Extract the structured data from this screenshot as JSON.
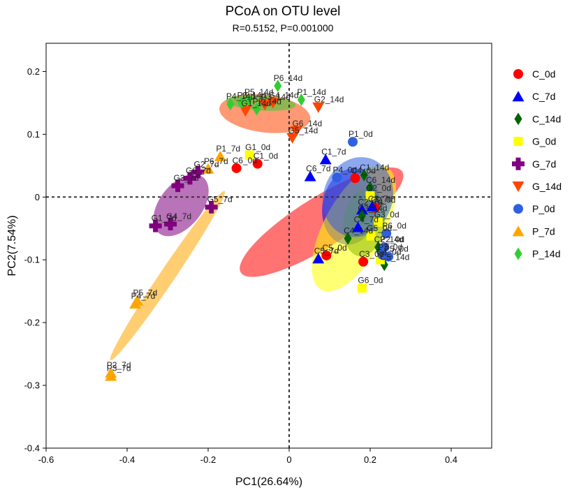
{
  "chart_data": {
    "type": "scatter",
    "title": "PCoA on OTU level",
    "subtitle": "R=0.5152, P=0.001000",
    "xlabel": "PC1(26.64%)",
    "ylabel": "PC2(7.54%)",
    "xlim": [
      -0.6,
      0.5
    ],
    "ylim": [
      -0.4,
      0.245
    ],
    "xticks": [
      "-0.6",
      "-0.4",
      "-0.2",
      "0",
      "0.2",
      "0.4"
    ],
    "yticks": [
      "0.2",
      "0.1",
      "0",
      "-0.1",
      "-0.2",
      "-0.3",
      "-0.4"
    ],
    "legend_position": "right",
    "groups": [
      {
        "name": "C_0d",
        "color": "#ff0000",
        "marker": "circle",
        "ellipse": {
          "cx": 0.08,
          "cy": -0.04,
          "rx": 0.235,
          "ry": 0.04,
          "angle": 32
        },
        "points": [
          {
            "label": "C1_0d",
            "x": -0.078,
            "y": 0.053
          },
          {
            "label": "C6_0d",
            "x": -0.13,
            "y": 0.046
          },
          {
            "label": "C4_0d",
            "x": 0.163,
            "y": 0.03
          },
          {
            "label": "C5_0d",
            "x": 0.092,
            "y": -0.093
          },
          {
            "label": "C3_0d",
            "x": 0.183,
            "y": -0.103
          },
          {
            "label": "C2_0d",
            "x": 0.212,
            "y": -0.017
          }
        ]
      },
      {
        "name": "C_7d",
        "color": "#0000ff",
        "marker": "triangle",
        "ellipse": {
          "cx": 0.152,
          "cy": -0.015,
          "rx": 0.095,
          "ry": 0.045,
          "angle": 80
        },
        "points": [
          {
            "label": "C1_7d",
            "x": 0.09,
            "y": 0.06
          },
          {
            "label": "C6_7d",
            "x": 0.052,
            "y": 0.033
          },
          {
            "label": "C2_7d",
            "x": 0.18,
            "y": -0.02
          },
          {
            "label": "C5_7d",
            "x": 0.072,
            "y": -0.098
          },
          {
            "label": "C4_7d",
            "x": 0.17,
            "y": -0.048
          },
          {
            "label": "C3_7d",
            "x": 0.205,
            "y": -0.015
          }
        ]
      },
      {
        "name": "C_14d",
        "color": "#006400",
        "marker": "diamond",
        "ellipse": {
          "cx": 0.185,
          "cy": -0.04,
          "rx": 0.085,
          "ry": 0.033,
          "angle": 82
        },
        "points": [
          {
            "label": "C1_14d",
            "x": 0.185,
            "y": 0.035
          },
          {
            "label": "C4_14d",
            "x": 0.145,
            "y": -0.066
          },
          {
            "label": "C6_14d",
            "x": 0.2,
            "y": 0.015
          },
          {
            "label": "C3_14d",
            "x": 0.18,
            "y": -0.03
          },
          {
            "label": "C2_14d",
            "x": 0.22,
            "y": -0.08
          },
          {
            "label": "C5_14d",
            "x": 0.235,
            "y": -0.108
          }
        ]
      },
      {
        "name": "G_0d",
        "color": "#ffff00",
        "marker": "square",
        "ellipse": {
          "cx": 0.16,
          "cy": -0.05,
          "rx": 0.172,
          "ry": 0.048,
          "angle": 62
        },
        "points": [
          {
            "label": "G1_0d",
            "x": -0.098,
            "y": 0.067
          },
          {
            "label": "G2_0d",
            "x": 0.2,
            "y": 0.002
          },
          {
            "label": "G3_0d",
            "x": 0.22,
            "y": -0.04
          },
          {
            "label": "G4_0d",
            "x": 0.225,
            "y": -0.1
          },
          {
            "label": "G5_0d",
            "x": 0.202,
            "y": -0.062
          },
          {
            "label": "G6_0d",
            "x": 0.18,
            "y": -0.145
          }
        ]
      },
      {
        "name": "G_7d",
        "color": "#800080",
        "marker": "cross",
        "ellipse": {
          "cx": -0.267,
          "cy": -0.013,
          "rx": 0.088,
          "ry": 0.034,
          "angle": 52
        },
        "points": [
          {
            "label": "G1_7d",
            "x": -0.33,
            "y": -0.046
          },
          {
            "label": "G2_7d",
            "x": -0.225,
            "y": 0.04
          },
          {
            "label": "G3_7d",
            "x": -0.275,
            "y": 0.018
          },
          {
            "label": "G4_7d",
            "x": -0.293,
            "y": -0.043
          },
          {
            "label": "G5_7d",
            "x": -0.192,
            "y": -0.016
          },
          {
            "label": "G6_7d",
            "x": -0.245,
            "y": 0.03
          }
        ]
      },
      {
        "name": "G_14d",
        "color": "#ff4500",
        "marker": "triangle-down",
        "ellipse": {
          "cx": -0.06,
          "cy": 0.133,
          "rx": 0.113,
          "ry": 0.03,
          "angle": -7
        },
        "points": [
          {
            "label": "G1_14d",
            "x": -0.108,
            "y": 0.137
          },
          {
            "label": "G2_14d",
            "x": 0.072,
            "y": 0.143
          },
          {
            "label": "G3_14d",
            "x": -0.06,
            "y": 0.147
          },
          {
            "label": "G4_14d",
            "x": -0.04,
            "y": 0.15
          },
          {
            "label": "G5_14d",
            "x": 0.008,
            "y": 0.094
          },
          {
            "label": "G6_14d",
            "x": 0.018,
            "y": 0.105
          }
        ]
      },
      {
        "name": "P_0d",
        "color": "#3060e0",
        "marker": "circle",
        "ellipse": {
          "cx": 0.17,
          "cy": 0.0,
          "rx": 0.1,
          "ry": 0.055,
          "angle": 72
        },
        "points": [
          {
            "label": "P1_0d",
            "x": 0.157,
            "y": 0.088
          },
          {
            "label": "P2_0d",
            "x": 0.235,
            "y": -0.08
          },
          {
            "label": "P3_0d",
            "x": 0.23,
            "y": -0.092
          },
          {
            "label": "P4_0d",
            "x": 0.118,
            "y": 0.031
          },
          {
            "label": "P5_0d",
            "x": 0.245,
            "y": -0.095
          },
          {
            "label": "P6_0d",
            "x": 0.24,
            "y": -0.058
          }
        ]
      },
      {
        "name": "P_7d",
        "color": "#ffa500",
        "marker": "triangle",
        "ellipse": {
          "cx": -0.3,
          "cy": -0.125,
          "rx": 0.252,
          "ry": 0.012,
          "angle": 56
        },
        "points": [
          {
            "label": "P1_7d",
            "x": -0.17,
            "y": 0.065
          },
          {
            "label": "P2_7d",
            "x": -0.44,
            "y": -0.28
          },
          {
            "label": "P3_7d",
            "x": -0.44,
            "y": -0.285
          },
          {
            "label": "P4_7d",
            "x": -0.38,
            "y": -0.17
          },
          {
            "label": "P5_7d",
            "x": -0.375,
            "y": -0.165
          },
          {
            "label": "P6_7d",
            "x": -0.2,
            "y": 0.045
          }
        ]
      },
      {
        "name": "P_14d",
        "color": "#32cd32",
        "marker": "diamond",
        "ellipse": {
          "cx": -0.07,
          "cy": 0.15,
          "rx": 0.086,
          "ry": 0.012,
          "angle": -4
        },
        "points": [
          {
            "label": "P1_14d",
            "x": 0.03,
            "y": 0.155
          },
          {
            "label": "P2_14d",
            "x": -0.08,
            "y": 0.14
          },
          {
            "label": "P3_14d",
            "x": -0.118,
            "y": 0.15
          },
          {
            "label": "P4_14d",
            "x": -0.145,
            "y": 0.148
          },
          {
            "label": "P5_14d",
            "x": -0.1,
            "y": 0.155
          },
          {
            "label": "P6_14d",
            "x": -0.028,
            "y": 0.177
          }
        ]
      }
    ]
  }
}
